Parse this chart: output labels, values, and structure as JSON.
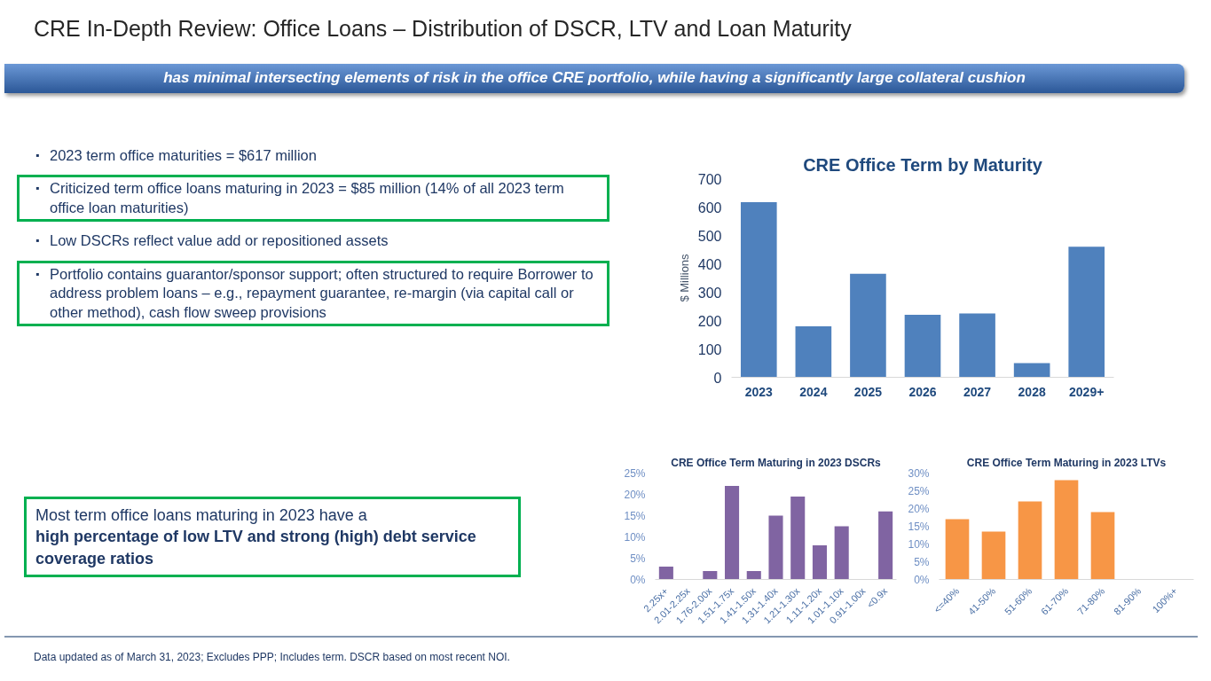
{
  "chart_data": [
    {
      "type": "other",
      "title": "CRE In-Depth Review: Office Loans – Distribution of DSCR, LTV and Loan Maturity",
      "subtitle": "has minimal intersecting elements of risk in the office CRE portfolio, while having a significantly large collateral cushion",
      "annotations": [
        "▪ 2023 term office maturities = $617 million",
        "▪ Criticized term office loans maturing in 2023 = $85 million (14% of all 2023 term office loan maturities)",
        "▪ Low DSCRs reflect value add or repositioned assets",
        "▪ Portfolio contains guarantor/sponsor support; often structured to require Borrower to address problem loans – e.g., repayment guarantee, re-margin (via capital call or other method), cash flow sweep provisions",
        "Most term office loans maturing in 2023 have a",
        "high percentage of low LTV and strong (high) debt service coverage ratios",
        "Data updated as of March 31, 2023; Excludes PPP; Includes term. DSCR based on most recent NOI."
      ]
    },
    {
      "type": "bar",
      "title": "CRE Office Term by Maturity",
      "categories": [
        "2023",
        "2024",
        "2025",
        "2026",
        "2027",
        "2028",
        "2029+"
      ],
      "values": [
        617,
        180,
        365,
        220,
        225,
        50,
        460
      ],
      "color": "#4f81bd",
      "ylabel": "$ Millions",
      "ylim": [
        0,
        700
      ],
      "yticks": [
        0,
        100,
        200,
        300,
        400,
        500,
        600,
        700
      ]
    },
    {
      "type": "bar",
      "title": "CRE Office Term Maturing in 2023 DSCRs",
      "categories": [
        "2.25x+",
        "2.01-2.25x",
        "1.76-2.00x",
        "1.51-1.75x",
        "1.41-1.50x",
        "1.31-1.40x",
        "1.21-1.30x",
        "1.11-1.20x",
        "1.01-1.10x",
        "0.91-1.00x",
        "<0.9x"
      ],
      "values": [
        3,
        0,
        2,
        22,
        2,
        15,
        19.5,
        8,
        12.5,
        0,
        16
      ],
      "color": "#8064a2",
      "ylim": [
        0,
        25
      ],
      "yticks": [
        {
          "value": 0,
          "label": "0%"
        },
        {
          "value": 5,
          "label": "5%"
        },
        {
          "value": 10,
          "label": "10%"
        },
        {
          "value": 15,
          "label": "15%"
        },
        {
          "value": 20,
          "label": "20%"
        },
        {
          "value": 25,
          "label": "25%"
        }
      ]
    },
    {
      "type": "bar",
      "title": "CRE Office Term Maturing in 2023 LTVs",
      "categories": [
        "<=40%",
        "41-50%",
        "51-60%",
        "61-70%",
        "71-80%",
        "81-90%",
        "100%+"
      ],
      "values": [
        17,
        13.5,
        22,
        28,
        19,
        0,
        0
      ],
      "color": "#f79646",
      "ylim": [
        0,
        30
      ],
      "yticks": [
        {
          "value": 0,
          "label": "0%"
        },
        {
          "value": 5,
          "label": "5%"
        },
        {
          "value": 10,
          "label": "10%"
        },
        {
          "value": 15,
          "label": "15%"
        },
        {
          "value": 20,
          "label": "20%"
        },
        {
          "value": 25,
          "label": "25%"
        },
        {
          "value": 30,
          "label": "30%"
        }
      ]
    }
  ]
}
